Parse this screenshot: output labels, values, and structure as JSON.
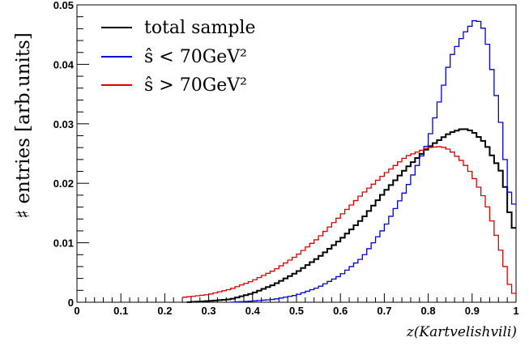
{
  "chart_data": {
    "type": "line",
    "xlabel": "z(Kartvelishvili)",
    "ylabel": "♯ entries [arb.units]",
    "xlim": [
      0,
      1
    ],
    "ylim": [
      0,
      0.05
    ],
    "x_ticks": [
      "0",
      "0.1",
      "0.2",
      "0.3",
      "0.4",
      "0.5",
      "0.6",
      "0.7",
      "0.8",
      "0.9",
      "1"
    ],
    "y_ticks": [
      "0",
      "0.01",
      "0.02",
      "0.03",
      "0.04",
      "0.05"
    ],
    "legend_position": "top-left",
    "grid": false,
    "bin_width": 0.01,
    "x": [
      0.25,
      0.3,
      0.35,
      0.4,
      0.45,
      0.5,
      0.55,
      0.6,
      0.65,
      0.7,
      0.75,
      0.8,
      0.85,
      0.88,
      0.9,
      0.91,
      0.93,
      0.95,
      0.97,
      0.99,
      1.0
    ],
    "series": [
      {
        "name": "total sample",
        "color": "#000000",
        "points": [
          [
            0.25,
            0.0
          ],
          [
            0.3,
            0.0002
          ],
          [
            0.35,
            0.0005
          ],
          [
            0.4,
            0.0015
          ],
          [
            0.45,
            0.003
          ],
          [
            0.5,
            0.005
          ],
          [
            0.55,
            0.0075
          ],
          [
            0.6,
            0.0105
          ],
          [
            0.65,
            0.014
          ],
          [
            0.7,
            0.0185
          ],
          [
            0.75,
            0.0225
          ],
          [
            0.8,
            0.026
          ],
          [
            0.85,
            0.0285
          ],
          [
            0.88,
            0.0292
          ],
          [
            0.9,
            0.0288
          ],
          [
            0.93,
            0.0268
          ],
          [
            0.95,
            0.024
          ],
          [
            0.97,
            0.0215
          ],
          [
            0.99,
            0.013
          ],
          [
            1.0,
            0.012
          ]
        ]
      },
      {
        "name": "ŝ < 70GeV²",
        "color": "#0000dd",
        "points": [
          [
            0.35,
            0.0
          ],
          [
            0.4,
            0.0002
          ],
          [
            0.45,
            0.0005
          ],
          [
            0.5,
            0.0012
          ],
          [
            0.55,
            0.0025
          ],
          [
            0.6,
            0.0045
          ],
          [
            0.65,
            0.0075
          ],
          [
            0.7,
            0.0125
          ],
          [
            0.75,
            0.019
          ],
          [
            0.8,
            0.027
          ],
          [
            0.83,
            0.035
          ],
          [
            0.85,
            0.041
          ],
          [
            0.88,
            0.045
          ],
          [
            0.91,
            0.0478
          ],
          [
            0.93,
            0.0455
          ],
          [
            0.95,
            0.037
          ],
          [
            0.97,
            0.028
          ],
          [
            0.98,
            0.02
          ],
          [
            0.99,
            0.017
          ],
          [
            1.0,
            0.016
          ]
        ]
      },
      {
        "name": "ŝ > 70GeV²",
        "color": "#dd0000",
        "points": [
          [
            0.24,
            0.0008
          ],
          [
            0.3,
            0.0013
          ],
          [
            0.35,
            0.0022
          ],
          [
            0.4,
            0.0036
          ],
          [
            0.45,
            0.0054
          ],
          [
            0.5,
            0.0078
          ],
          [
            0.55,
            0.0108
          ],
          [
            0.6,
            0.0145
          ],
          [
            0.65,
            0.0182
          ],
          [
            0.7,
            0.0215
          ],
          [
            0.75,
            0.0245
          ],
          [
            0.8,
            0.026
          ],
          [
            0.83,
            0.0262
          ],
          [
            0.85,
            0.0256
          ],
          [
            0.88,
            0.0235
          ],
          [
            0.9,
            0.0215
          ],
          [
            0.93,
            0.0172
          ],
          [
            0.95,
            0.0125
          ],
          [
            0.97,
            0.0075
          ],
          [
            0.99,
            0.0015
          ],
          [
            1.0,
            0.0015
          ]
        ]
      }
    ],
    "legend": {
      "entries": [
        "total sample",
        "ŝ < 70GeV²",
        "ŝ > 70GeV²"
      ]
    }
  }
}
